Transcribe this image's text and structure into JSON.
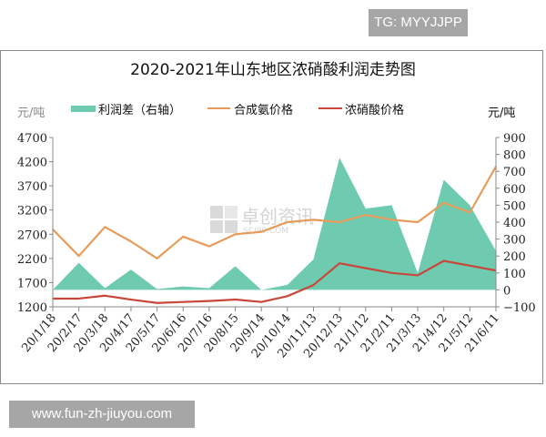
{
  "badges": {
    "top_right": "TG: MYYJJPP",
    "bottom_left": "www.fun-zh-jiuyou.com"
  },
  "watermark": {
    "text": "卓创资讯",
    "sub": "SCI99.COM"
  },
  "chart_data": {
    "type": "line",
    "title": "2020-2021年山东地区浓硝酸利润走势图",
    "left_unit": "元/吨",
    "right_unit": "元/吨",
    "legend": [
      {
        "name": "利润差（右轴）",
        "type": "area",
        "color": "#6ecbb0"
      },
      {
        "name": "合成氨价格",
        "type": "line",
        "color": "#e89b5a"
      },
      {
        "name": "浓硝酸价格",
        "type": "line",
        "color": "#c8473a"
      }
    ],
    "legend_position": "top",
    "grid": false,
    "left_axis": {
      "min": 1200,
      "max": 4700,
      "ticks": [
        4700,
        4200,
        3700,
        3200,
        2700,
        2200,
        1700,
        1200
      ]
    },
    "right_axis": {
      "min": -100,
      "max": 900,
      "ticks": [
        900,
        800,
        700,
        600,
        500,
        400,
        300,
        200,
        100,
        0,
        -100
      ]
    },
    "categories": [
      "20/1/18",
      "20/2/17",
      "20/3/18",
      "20/4/17",
      "20/5/17",
      "20/6/16",
      "20/7/16",
      "20/8/15",
      "20/9/14",
      "20/10/14",
      "20/11/13",
      "20/12/13",
      "21/1/12",
      "21/2/11",
      "21/3/13",
      "21/4/12",
      "21/5/12",
      "21/6/11"
    ],
    "series": [
      {
        "name": "合成氨价格",
        "axis": "left",
        "values": [
          2800,
          2250,
          2850,
          2550,
          2200,
          2650,
          2450,
          2700,
          2750,
          2950,
          3000,
          2950,
          3100,
          3000,
          2950,
          3350,
          3150,
          4100
        ]
      },
      {
        "name": "浓硝酸价格",
        "axis": "left",
        "values": [
          1370,
          1370,
          1430,
          1350,
          1280,
          1300,
          1320,
          1350,
          1300,
          1420,
          1650,
          2100,
          2000,
          1900,
          1850,
          2150,
          2050,
          1950
        ]
      },
      {
        "name": "利润差（右轴）",
        "axis": "right",
        "values": [
          0,
          160,
          10,
          120,
          5,
          20,
          10,
          140,
          0,
          30,
          180,
          780,
          480,
          500,
          100,
          650,
          500,
          230
        ]
      }
    ]
  }
}
